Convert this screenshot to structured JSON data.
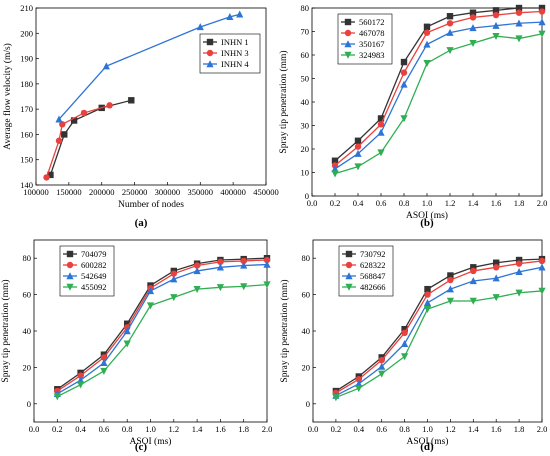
{
  "colors": {
    "black": "#333333",
    "red": "#e8413e",
    "blue": "#2e74d6",
    "green": "#2fae52"
  },
  "chart_data": [
    {
      "id": "a",
      "type": "line",
      "panel_label": "(a)",
      "xlabel": "Number of nodes",
      "ylabel": "Average flow velocity (m/s)",
      "xlim": [
        100000,
        450000
      ],
      "ylim": [
        140,
        210
      ],
      "xticks": [
        "100000",
        "150000",
        "200000",
        "250000",
        "300000",
        "350000",
        "400000",
        "450000"
      ],
      "xtick_values": [
        100000,
        150000,
        200000,
        250000,
        300000,
        350000,
        400000,
        450000
      ],
      "yticks": [
        "140",
        "150",
        "160",
        "170",
        "180",
        "190",
        "200",
        "210"
      ],
      "ytick_values": [
        140,
        150,
        160,
        170,
        180,
        190,
        200,
        210
      ],
      "legend_position": "top-right",
      "series": [
        {
          "name": "INHN 1",
          "color": "#333333",
          "marker": "square",
          "x": [
            122000,
            143000,
            158000,
            200000,
            245000
          ],
          "y": [
            144,
            160,
            165.5,
            170.5,
            173.5
          ]
        },
        {
          "name": "INHN 3",
          "color": "#e8413e",
          "marker": "circle",
          "x": [
            116000,
            135000,
            140000,
            173000,
            212000
          ],
          "y": [
            143,
            157.5,
            164,
            168.5,
            171.5
          ]
        },
        {
          "name": "INHN 4",
          "color": "#2e74d6",
          "marker": "triangle",
          "x": [
            135000,
            207000,
            350000,
            395000,
            410000
          ],
          "y": [
            166,
            187,
            202.5,
            206.5,
            207.5
          ]
        }
      ]
    },
    {
      "id": "b",
      "type": "line",
      "panel_label": "(b)",
      "xlabel": "ASOI (ms)",
      "ylabel": "Spray tip penetration (mm)",
      "xlim": [
        0,
        2.0
      ],
      "ylim": [
        0,
        80
      ],
      "xticks": [
        "0.0",
        "0.2",
        "0.4",
        "0.6",
        "0.8",
        "1.0",
        "1.2",
        "1.4",
        "1.6",
        "1.8",
        "2.0"
      ],
      "xtick_values": [
        0,
        0.2,
        0.4,
        0.6,
        0.8,
        1.0,
        1.2,
        1.4,
        1.6,
        1.8,
        2.0
      ],
      "yticks": [
        "0",
        "10",
        "20",
        "30",
        "40",
        "50",
        "60",
        "70",
        "80"
      ],
      "ytick_values": [
        0,
        10,
        20,
        30,
        40,
        50,
        60,
        70,
        80
      ],
      "x": [
        0.2,
        0.4,
        0.6,
        0.8,
        1.0,
        1.2,
        1.4,
        1.6,
        1.8,
        2.0
      ],
      "legend_position": "top-left",
      "series": [
        {
          "name": "560172",
          "color": "#333333",
          "marker": "square",
          "values": [
            15,
            23.5,
            33,
            57,
            72,
            76.5,
            78,
            79,
            80,
            80
          ]
        },
        {
          "name": "467078",
          "color": "#e8413e",
          "marker": "circle",
          "values": [
            13,
            21,
            30.5,
            52.5,
            69.5,
            73.5,
            76,
            77,
            78,
            78.5
          ]
        },
        {
          "name": "350167",
          "color": "#2e74d6",
          "marker": "triangle",
          "values": [
            11.5,
            18,
            27,
            47.5,
            64.5,
            69.5,
            71.5,
            72.5,
            73.5,
            74
          ]
        },
        {
          "name": "324983",
          "color": "#2fae52",
          "marker": "triangle-down",
          "values": [
            9.5,
            12.5,
            18.5,
            33,
            56.5,
            62,
            65,
            68,
            67,
            69
          ]
        }
      ]
    },
    {
      "id": "c",
      "type": "line",
      "panel_label": "(c)",
      "xlabel": "ASOI (ms)",
      "ylabel": "Spray tip penetration (mm)",
      "xlim": [
        0,
        2.0
      ],
      "ylim": [
        -10,
        90
      ],
      "xticks": [
        "0.0",
        "0.2",
        "0.4",
        "0.6",
        "0.8",
        "1.0",
        "1.2",
        "1.4",
        "1.6",
        "1.8",
        "2.0"
      ],
      "xtick_values": [
        0,
        0.2,
        0.4,
        0.6,
        0.8,
        1.0,
        1.2,
        1.4,
        1.6,
        1.8,
        2.0
      ],
      "yticks": [
        "0",
        "20",
        "40",
        "60",
        "80"
      ],
      "ytick_values": [
        0,
        20,
        40,
        60,
        80
      ],
      "x": [
        0.2,
        0.4,
        0.6,
        0.8,
        1.0,
        1.2,
        1.4,
        1.6,
        1.8,
        2.0
      ],
      "legend_position": "top-left",
      "series": [
        {
          "name": "704079",
          "color": "#333333",
          "marker": "square",
          "values": [
            8,
            17,
            27,
            44,
            65,
            73,
            77,
            79,
            79.5,
            80
          ]
        },
        {
          "name": "600282",
          "color": "#e8413e",
          "marker": "circle",
          "values": [
            7,
            15.5,
            25.5,
            42,
            63.5,
            71.5,
            76,
            78,
            78.5,
            79
          ]
        },
        {
          "name": "542649",
          "color": "#2e74d6",
          "marker": "triangle",
          "values": [
            5.5,
            13,
            22.5,
            40,
            62,
            68.5,
            73,
            75,
            76,
            76.5
          ]
        },
        {
          "name": "455092",
          "color": "#2fae52",
          "marker": "triangle-down",
          "values": [
            4,
            10.5,
            18,
            33,
            54,
            58.5,
            63,
            64,
            64.5,
            65.5
          ]
        }
      ]
    },
    {
      "id": "d",
      "type": "line",
      "panel_label": "(d)",
      "xlabel": "ASOI (ms)",
      "ylabel": "Spray tip penetration (mm)",
      "xlim": [
        0,
        2.0
      ],
      "ylim": [
        -10,
        90
      ],
      "xticks": [
        "0.0",
        "0.2",
        "0.4",
        "0.6",
        "0.8",
        "1.0",
        "1.2",
        "1.4",
        "1.6",
        "1.8",
        "2.0"
      ],
      "xtick_values": [
        0,
        0.2,
        0.4,
        0.6,
        0.8,
        1.0,
        1.2,
        1.4,
        1.6,
        1.8,
        2.0
      ],
      "yticks": [
        "0",
        "20",
        "40",
        "60",
        "80"
      ],
      "ytick_values": [
        0,
        20,
        40,
        60,
        80
      ],
      "x": [
        0.2,
        0.4,
        0.6,
        0.8,
        1.0,
        1.2,
        1.4,
        1.6,
        1.8,
        2.0
      ],
      "legend_position": "top-left",
      "series": [
        {
          "name": "730792",
          "color": "#333333",
          "marker": "square",
          "values": [
            7,
            15,
            25.5,
            41,
            63,
            70.5,
            75,
            77.5,
            79,
            79.5
          ]
        },
        {
          "name": "628322",
          "color": "#e8413e",
          "marker": "circle",
          "values": [
            6,
            13.5,
            24,
            39,
            60,
            68,
            73,
            75,
            77,
            78.5
          ]
        },
        {
          "name": "568847",
          "color": "#2e74d6",
          "marker": "triangle",
          "values": [
            4.5,
            11,
            20.5,
            33,
            55.5,
            63,
            67.5,
            69,
            72.5,
            75
          ]
        },
        {
          "name": "482666",
          "color": "#2fae52",
          "marker": "triangle-down",
          "values": [
            3.5,
            8.5,
            16.5,
            26,
            52,
            56.5,
            56.5,
            58.5,
            61,
            62
          ]
        }
      ]
    }
  ]
}
